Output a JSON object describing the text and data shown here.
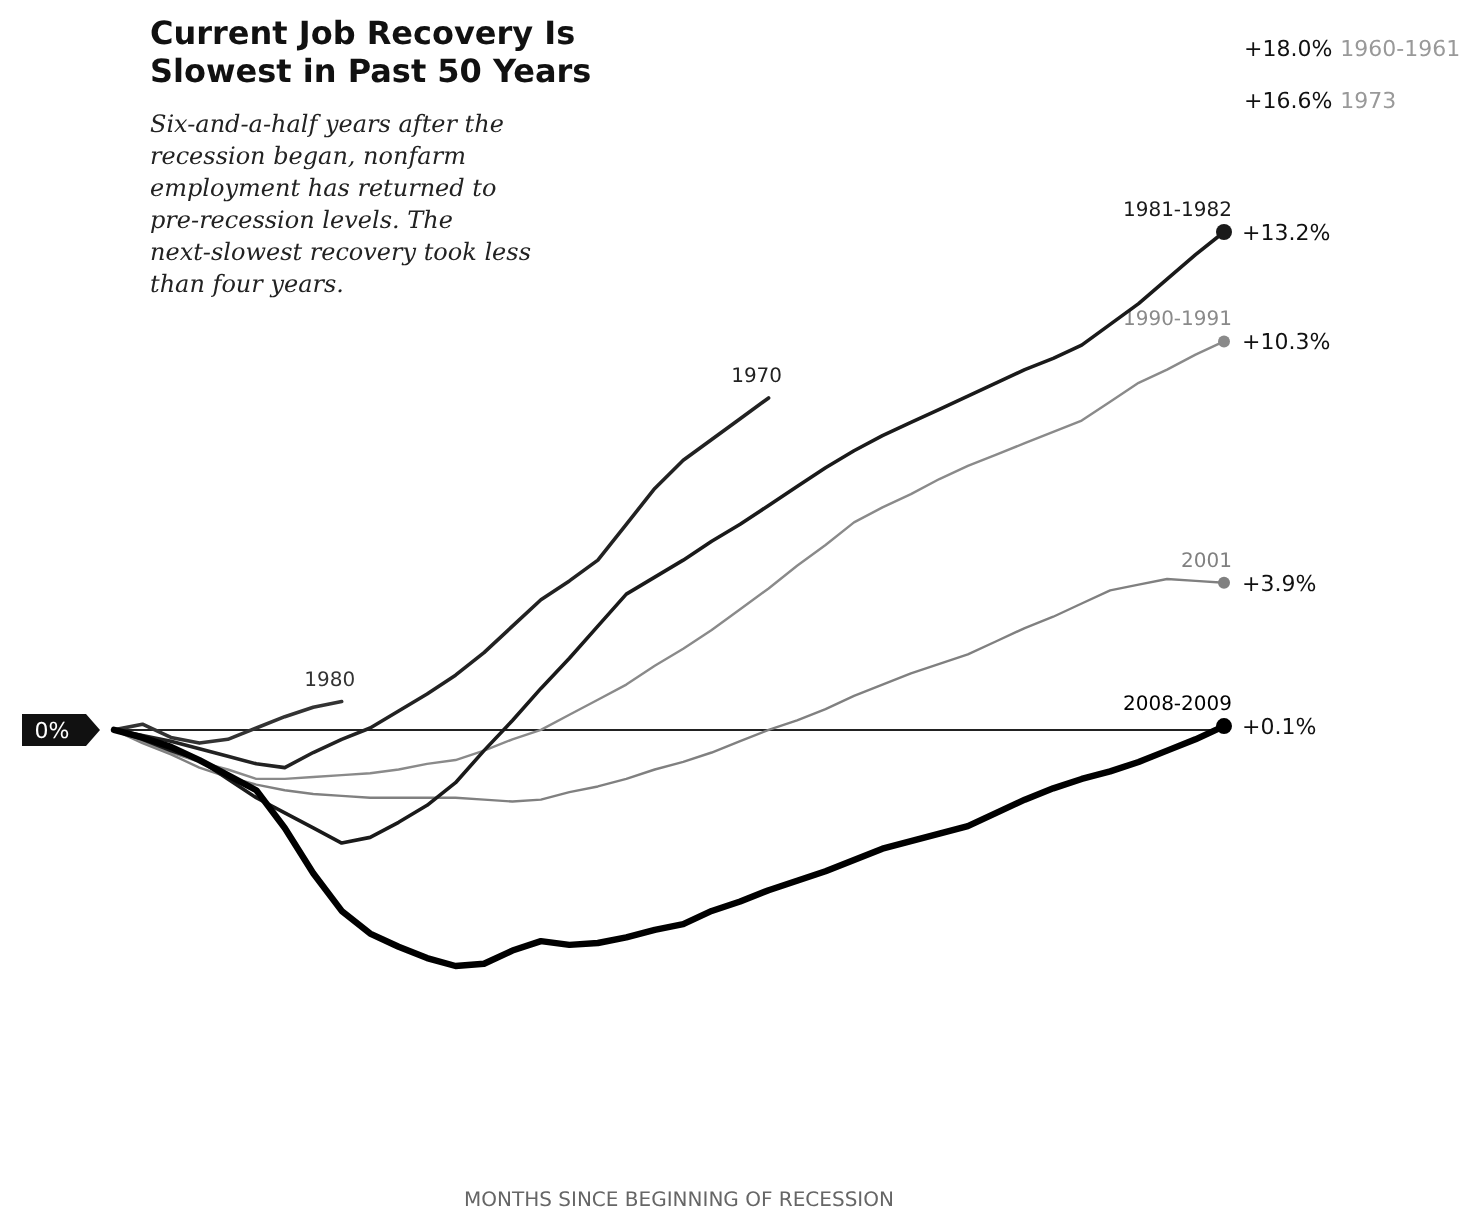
{
  "chart_data": {
    "type": "line",
    "title": "Current Job Recovery Is Slowest in Past 50 Years",
    "subtitle": "Six-and-a-half years after the recession began, nonfarm employment has returned to pre-recession levels. The next-slowest recovery took less than four years.",
    "categories": [
      null,
      null,
      null,
      null,
      null,
      null,
      null,
      null,
      null,
      null,
      null,
      null,
      null,
      null,
      null,
      null,
      null,
      null,
      null,
      null,
      null,
      null,
      null,
      null,
      null,
      null,
      null,
      null,
      null,
      null,
      null,
      null,
      null,
      null,
      null,
      null,
      null,
      null,
      null,
      null
    ],
    "ref_lines": [
      {
        "axis": "y",
        "value": 0,
        "label": "0%",
        "color": "#222222"
      }
    ],
    "annotations": [
      "+18.0% 1960-1961",
      "+16.6% 1973",
      "MONTHS SINCE BEGINNING OF RECESSION"
    ],
    "series": [
      {
        "name": "1980",
        "color": "#333333",
        "values": [
          0,
          0.15,
          -0.2,
          -0.35,
          -0.25,
          0.05,
          0.35,
          0.6,
          0.75,
          null,
          null,
          null,
          null,
          null,
          null,
          null,
          null,
          null,
          null,
          null,
          null,
          null,
          null,
          null,
          null,
          null,
          null,
          null,
          null,
          null,
          null,
          null,
          null,
          null,
          null,
          null,
          null,
          null,
          null,
          null
        ]
      },
      {
        "name": "1970",
        "color": "#222222",
        "values": [
          0,
          -0.15,
          -0.3,
          -0.5,
          -0.7,
          -0.9,
          -1.0,
          -0.6,
          -0.25,
          0.05,
          0.5,
          0.95,
          1.45,
          2.05,
          2.75,
          3.45,
          3.95,
          4.5,
          5.45,
          6.4,
          7.15,
          7.7,
          8.25,
          8.8,
          null,
          null,
          null,
          null,
          null,
          null,
          null,
          null,
          null,
          null,
          null,
          null,
          null,
          null,
          null,
          null
        ]
      },
      {
        "name": "2001",
        "color": "#808080",
        "values": [
          0,
          -0.35,
          -0.65,
          -1.0,
          -1.25,
          -1.45,
          -1.6,
          -1.7,
          -1.75,
          -1.8,
          -1.8,
          -1.8,
          -1.8,
          -1.85,
          -1.9,
          -1.85,
          -1.65,
          -1.5,
          -1.3,
          -1.05,
          -0.85,
          -0.6,
          -0.3,
          0,
          0.25,
          0.55,
          0.9,
          1.2,
          1.5,
          1.75,
          2.0,
          2.35,
          2.7,
          3.0,
          3.35,
          3.7,
          3.85,
          4.0,
          3.95,
          3.9
        ],
        "value_labels": [
          null,
          null,
          null,
          null,
          null,
          null,
          null,
          null,
          null,
          null,
          null,
          null,
          null,
          null,
          null,
          null,
          null,
          null,
          null,
          null,
          null,
          null,
          null,
          null,
          null,
          null,
          null,
          null,
          null,
          null,
          null,
          null,
          null,
          null,
          null,
          null,
          null,
          null,
          null,
          "+3.9%"
        ]
      },
      {
        "name": "1990-1991",
        "color": "#8a8a8a",
        "values": [
          0,
          -0.3,
          -0.6,
          -0.85,
          -1.05,
          -1.3,
          -1.3,
          -1.25,
          -1.2,
          -1.15,
          -1.05,
          -0.9,
          -0.8,
          -0.55,
          -0.25,
          0,
          0.4,
          0.8,
          1.2,
          1.7,
          2.15,
          2.65,
          3.2,
          3.75,
          4.35,
          4.9,
          5.5,
          5.9,
          6.25,
          6.65,
          7.0,
          7.3,
          7.6,
          7.9,
          8.2,
          8.7,
          9.2,
          9.55,
          9.95,
          10.3
        ],
        "value_labels": [
          null,
          null,
          null,
          null,
          null,
          null,
          null,
          null,
          null,
          null,
          null,
          null,
          null,
          null,
          null,
          null,
          null,
          null,
          null,
          null,
          null,
          null,
          null,
          null,
          null,
          null,
          null,
          null,
          null,
          null,
          null,
          null,
          null,
          null,
          null,
          null,
          null,
          null,
          null,
          "+10.3%"
        ]
      },
      {
        "name": "1981-1982",
        "color": "#1a1a1a",
        "values": [
          0,
          -0.25,
          -0.55,
          -0.8,
          -1.3,
          -1.8,
          -2.2,
          -2.6,
          -3.0,
          -2.85,
          -2.45,
          -2.0,
          -1.4,
          -0.55,
          0.25,
          1.1,
          1.9,
          2.75,
          3.6,
          4.05,
          4.5,
          5.0,
          5.45,
          5.95,
          6.45,
          6.95,
          7.4,
          7.8,
          8.15,
          8.5,
          8.85,
          9.2,
          9.55,
          9.85,
          10.2,
          10.75,
          11.3,
          11.95,
          12.6,
          13.2
        ],
        "value_labels": [
          null,
          null,
          null,
          null,
          null,
          null,
          null,
          null,
          null,
          null,
          null,
          null,
          null,
          null,
          null,
          null,
          null,
          null,
          null,
          null,
          null,
          null,
          null,
          null,
          null,
          null,
          null,
          null,
          null,
          null,
          null,
          null,
          null,
          null,
          null,
          null,
          null,
          null,
          null,
          "+13.2%"
        ]
      },
      {
        "name": "2008-2009",
        "color": "#000000",
        "values": [
          0,
          -0.2,
          -0.45,
          -0.8,
          -1.2,
          -1.6,
          -2.6,
          -3.8,
          -4.8,
          -5.4,
          -5.75,
          -6.05,
          -6.26,
          -6.2,
          -5.85,
          -5.6,
          -5.7,
          -5.65,
          -5.5,
          -5.3,
          -5.15,
          -4.8,
          -4.55,
          -4.25,
          -4.0,
          -3.75,
          -3.45,
          -3.15,
          -2.95,
          -2.75,
          -2.55,
          -2.2,
          -1.85,
          -1.55,
          -1.3,
          -1.1,
          -0.85,
          -0.55,
          -0.25,
          0.1
        ],
        "value_labels": [
          null,
          null,
          null,
          null,
          null,
          null,
          null,
          null,
          null,
          null,
          null,
          null,
          null,
          null,
          null,
          null,
          null,
          null,
          null,
          null,
          null,
          null,
          null,
          null,
          null,
          null,
          null,
          null,
          null,
          null,
          null,
          null,
          null,
          null,
          null,
          null,
          null,
          null,
          null,
          "+0.1%"
        ]
      }
    ]
  }
}
